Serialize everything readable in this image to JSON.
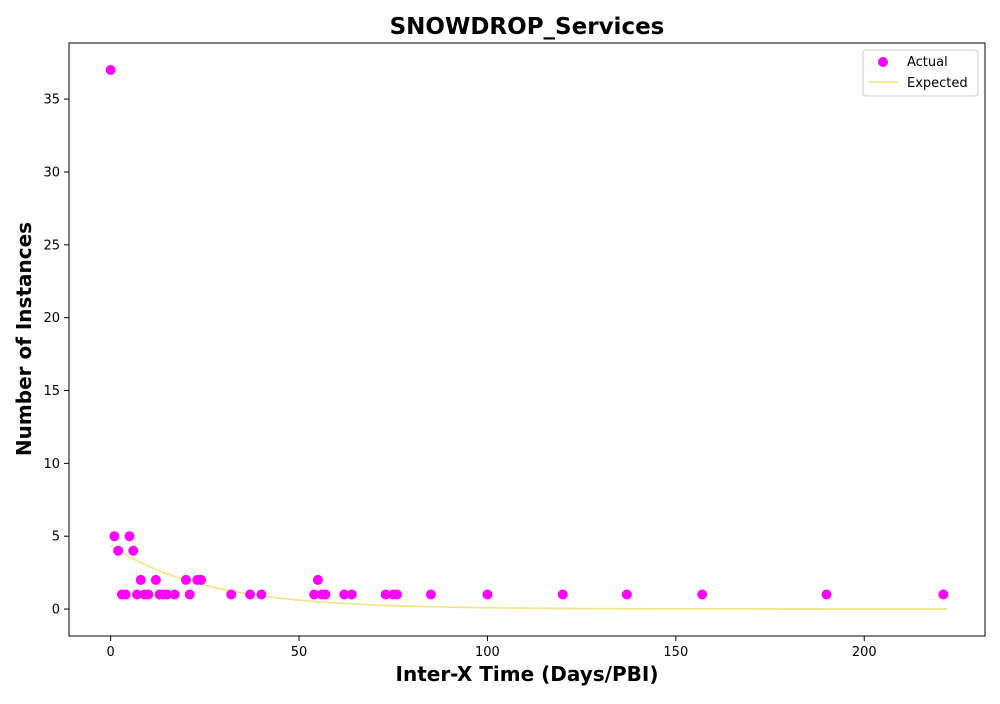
{
  "chart_data": {
    "type": "scatter",
    "title": "SNOWDROP_Services",
    "xlabel": "Inter-X Time (Days/PBI)",
    "ylabel": "Number of Instances",
    "xlim": [
      -11.05,
      232.05
    ],
    "ylim": [
      -1.85,
      38.85
    ],
    "xticks": [
      0,
      50,
      100,
      150,
      200
    ],
    "yticks": [
      0,
      5,
      10,
      15,
      20,
      25,
      30,
      35
    ],
    "grid": false,
    "legend": "top-right",
    "series": [
      {
        "name": "Actual",
        "kind": "scatter",
        "color": "#ff00ff",
        "points": [
          [
            0,
            37
          ],
          [
            1,
            5
          ],
          [
            2,
            4
          ],
          [
            3,
            1
          ],
          [
            4,
            1
          ],
          [
            5,
            5
          ],
          [
            6,
            4
          ],
          [
            7,
            1
          ],
          [
            8,
            2
          ],
          [
            9,
            1
          ],
          [
            10,
            1
          ],
          [
            12,
            2
          ],
          [
            13,
            1
          ],
          [
            14,
            1
          ],
          [
            15,
            1
          ],
          [
            17,
            1
          ],
          [
            20,
            2
          ],
          [
            21,
            1
          ],
          [
            23,
            2
          ],
          [
            24,
            2
          ],
          [
            32,
            1
          ],
          [
            37,
            1
          ],
          [
            40,
            1
          ],
          [
            54,
            1
          ],
          [
            55,
            2
          ],
          [
            56,
            1
          ],
          [
            57,
            1
          ],
          [
            62,
            1
          ],
          [
            64,
            1
          ],
          [
            73,
            1
          ],
          [
            75,
            1
          ],
          [
            76,
            1
          ],
          [
            85,
            1
          ],
          [
            100,
            1
          ],
          [
            120,
            1
          ],
          [
            137,
            1
          ],
          [
            157,
            1
          ],
          [
            190,
            1
          ],
          [
            221,
            1
          ]
        ]
      },
      {
        "name": "Expected",
        "kind": "line",
        "color": "#f0e68c",
        "points": [
          [
            0,
            4.36
          ],
          [
            5,
            3.58
          ],
          [
            10,
            2.94
          ],
          [
            15,
            2.41
          ],
          [
            20,
            1.98
          ],
          [
            25,
            1.63
          ],
          [
            30,
            1.34
          ],
          [
            35,
            1.1
          ],
          [
            40,
            0.9
          ],
          [
            45,
            0.74
          ],
          [
            50,
            0.61
          ],
          [
            55,
            0.5
          ],
          [
            60,
            0.41
          ],
          [
            65,
            0.34
          ],
          [
            70,
            0.28
          ],
          [
            75,
            0.23
          ],
          [
            80,
            0.19
          ],
          [
            90,
            0.13
          ],
          [
            100,
            0.09
          ],
          [
            110,
            0.06
          ],
          [
            120,
            0.04
          ],
          [
            130,
            0.03
          ],
          [
            140,
            0.02
          ],
          [
            150,
            0.01
          ],
          [
            170,
            0.01
          ],
          [
            190,
            0.0
          ],
          [
            210,
            0.0
          ],
          [
            222,
            0.0
          ]
        ]
      }
    ]
  }
}
